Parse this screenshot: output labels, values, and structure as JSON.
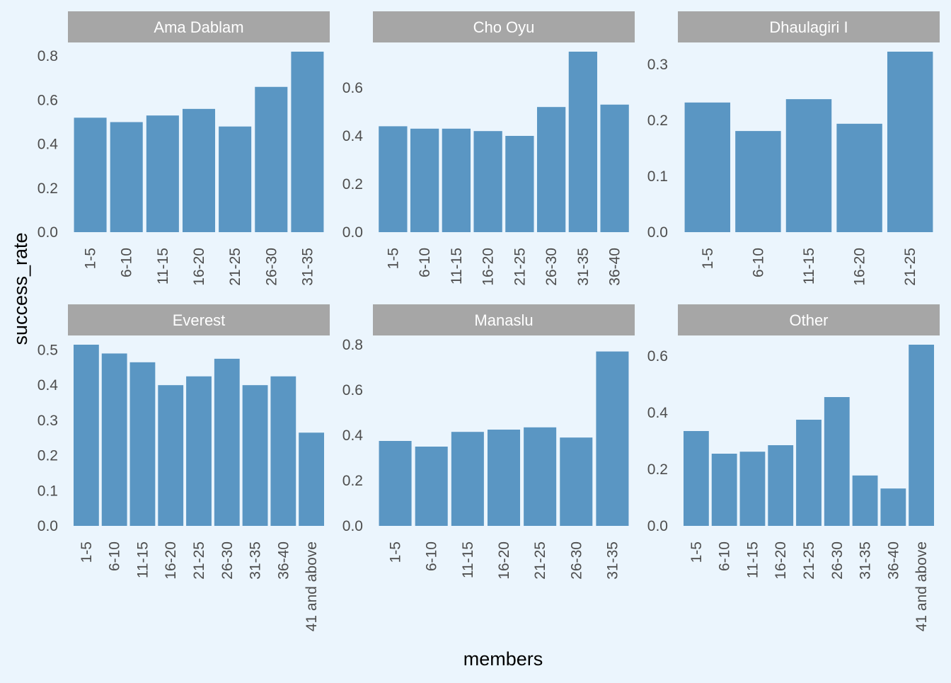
{
  "colors": {
    "background": "#ebf5fd",
    "bar": "#5a96c3",
    "strip": "#a6a6a6",
    "strip_text": "#ffffff",
    "tick_text": "#4d4d4d",
    "axis_title": "#000000"
  },
  "axes": {
    "xlabel": "members",
    "ylabel": "success_rate"
  },
  "chart_data": [
    {
      "type": "bar",
      "title": "Ama Dablam",
      "categories": [
        "1-5",
        "6-10",
        "11-15",
        "16-20",
        "21-25",
        "26-30",
        "31-35"
      ],
      "values": [
        0.52,
        0.5,
        0.53,
        0.56,
        0.48,
        0.66,
        0.82
      ],
      "ylim": [
        0,
        0.82
      ],
      "yticks": [
        0.0,
        0.2,
        0.4,
        0.6,
        0.8
      ],
      "ytick_labels": [
        "0.0",
        "0.2",
        "0.4",
        "0.6",
        "0.8"
      ]
    },
    {
      "type": "bar",
      "title": "Cho Oyu",
      "categories": [
        "1-5",
        "6-10",
        "11-15",
        "16-20",
        "21-25",
        "26-30",
        "31-35",
        "36-40"
      ],
      "values": [
        0.44,
        0.43,
        0.43,
        0.42,
        0.4,
        0.52,
        0.75,
        0.53
      ],
      "ylim": [
        0,
        0.75
      ],
      "yticks": [
        0.0,
        0.2,
        0.4,
        0.6
      ],
      "ytick_labels": [
        "0.0",
        "0.2",
        "0.4",
        "0.6"
      ]
    },
    {
      "type": "bar",
      "title": "Dhaulagiri I",
      "categories": [
        "1-5",
        "6-10",
        "11-15",
        "16-20",
        "21-25"
      ],
      "values": [
        0.232,
        0.181,
        0.238,
        0.194,
        0.323
      ],
      "ylim": [
        0,
        0.323
      ],
      "yticks": [
        0.0,
        0.1,
        0.2,
        0.3
      ],
      "ytick_labels": [
        "0.0",
        "0.1",
        "0.2",
        "0.3"
      ]
    },
    {
      "type": "bar",
      "title": "Everest",
      "categories": [
        "1-5",
        "6-10",
        "11-15",
        "16-20",
        "21-25",
        "26-30",
        "31-35",
        "36-40",
        "41 and above"
      ],
      "values": [
        0.515,
        0.49,
        0.465,
        0.4,
        0.425,
        0.475,
        0.4,
        0.425,
        0.265
      ],
      "ylim": [
        0,
        0.515
      ],
      "yticks": [
        0.0,
        0.1,
        0.2,
        0.3,
        0.4,
        0.5
      ],
      "ytick_labels": [
        "0.0",
        "0.1",
        "0.2",
        "0.3",
        "0.4",
        "0.5"
      ]
    },
    {
      "type": "bar",
      "title": "Manaslu",
      "categories": [
        "1-5",
        "6-10",
        "11-15",
        "16-20",
        "21-25",
        "26-30",
        "31-35"
      ],
      "values": [
        0.375,
        0.35,
        0.415,
        0.425,
        0.435,
        0.39,
        0.77
      ],
      "ylim": [
        0,
        0.8
      ],
      "yticks": [
        0.0,
        0.2,
        0.4,
        0.6,
        0.8
      ],
      "ytick_labels": [
        "0.0",
        "0.2",
        "0.4",
        "0.6",
        "0.8"
      ]
    },
    {
      "type": "bar",
      "title": "Other",
      "categories": [
        "1-5",
        "6-10",
        "11-15",
        "16-20",
        "21-25",
        "26-30",
        "31-35",
        "36-40",
        "41 and above"
      ],
      "values": [
        0.335,
        0.255,
        0.262,
        0.285,
        0.375,
        0.455,
        0.178,
        0.132,
        0.64
      ],
      "ylim": [
        0,
        0.64
      ],
      "yticks": [
        0.0,
        0.2,
        0.4,
        0.6
      ],
      "ytick_labels": [
        "0.0",
        "0.2",
        "0.4",
        "0.6"
      ]
    }
  ]
}
